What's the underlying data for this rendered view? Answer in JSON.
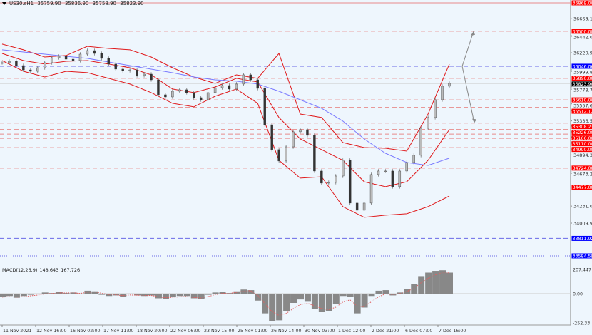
{
  "header": {
    "symbol": "US30.sH1",
    "open": "35759.90",
    "high": "35836.90",
    "low": "35758.90",
    "close": "35823.90"
  },
  "macd_header": {
    "label": "MACD(12,26,9)",
    "main": "148.643",
    "signal": "167.726"
  },
  "colors": {
    "background": "#eef6fd",
    "resistance": "#ff0000",
    "blue_level": "#0000ff",
    "current": "#000000",
    "bands": "#e0191b",
    "ma": "#7b7bff",
    "candles": "#333333",
    "histogram": "#888888",
    "signal": "#e06060"
  },
  "chart_data": [
    {
      "type": "line",
      "title": "US30.sH1",
      "ylim": [
        33584.59,
        36869.0
      ],
      "y_tick_labels": [
        "36663.15",
        "36442.05",
        "36220.95",
        "35999.85",
        "35778.75",
        "35557.65",
        "35336.55",
        "34894.35",
        "34673.25",
        "34231.05",
        "34009.95"
      ],
      "x_tick_labels": [
        "11 Nov 2021",
        "12 Nov 16:00",
        "16 Nov 02:00",
        "17 Nov 11:00",
        "18 Nov 20:00",
        "22 Nov 06:00",
        "23 Nov 15:00",
        "25 Nov 01:00",
        "26 Nov 14:00",
        "30 Nov 03:00",
        "1 Dec 12:00",
        "2 Dec 21:00",
        "6 Dec 07:00",
        "7 Dec 16:00"
      ],
      "levels": [
        {
          "value": 36869.0,
          "label": "36869.00",
          "kind": "red",
          "style": "solid"
        },
        {
          "value": 36500.0,
          "label": "36500.00",
          "kind": "red",
          "style": "dashed"
        },
        {
          "value": 36046.06,
          "label": "36046.06",
          "kind": "blue",
          "style": "dashed"
        },
        {
          "value": 35890.0,
          "label": "35890.00",
          "kind": "red",
          "style": "dashed"
        },
        {
          "value": 35823.9,
          "label": "35823.90",
          "kind": "current",
          "style": "solid"
        },
        {
          "value": 35610.0,
          "label": "35610.00",
          "kind": "red",
          "style": "dashed"
        },
        {
          "value": 35512.12,
          "label": "35512.12",
          "kind": "red",
          "style": "dashed"
        },
        {
          "value": 35308.23,
          "label": "35308.23",
          "kind": "red",
          "style": "dashed"
        },
        {
          "value": 35226.0,
          "label": "35226.00",
          "kind": "red",
          "style": "dashed"
        },
        {
          "value": 35166.0,
          "label": "35166.00",
          "kind": "red",
          "style": "dashed"
        },
        {
          "value": 35110.0,
          "label": "35110.00",
          "kind": "red",
          "style": "dashed"
        },
        {
          "value": 34990.0,
          "label": "34990.00",
          "kind": "red",
          "style": "dashed"
        },
        {
          "value": 34724.0,
          "label": "34724.00",
          "kind": "red",
          "style": "dashed"
        },
        {
          "value": 34477.0,
          "label": "34477.00",
          "kind": "red",
          "style": "dashed"
        },
        {
          "value": 33811.92,
          "label": "33811.92",
          "kind": "blue",
          "style": "dashed"
        },
        {
          "value": 33584.59,
          "label": "33584.59",
          "kind": "blue",
          "style": "dotted"
        }
      ],
      "series": [
        {
          "kind": "price",
          "values": [
            36092,
            36110,
            36055,
            35999,
            35981,
            36027,
            36092,
            36157,
            36175,
            36138,
            36120,
            36203,
            36249,
            36212,
            36148,
            36074,
            36009,
            35990,
            35999,
            35926,
            35944,
            35870,
            35676,
            35648,
            35722,
            35741,
            35704,
            35639,
            35611,
            35704,
            35768,
            35796,
            35750,
            35815,
            35935,
            35870,
            35759,
            35287,
            34964,
            34816,
            35000,
            35195,
            35223,
            35149,
            34686,
            34529,
            34538,
            34621,
            34825,
            34270,
            34177,
            34270,
            34640,
            34686,
            34686,
            34483,
            34686,
            34797,
            34890,
            35241,
            35380,
            35611,
            35787,
            35824
          ]
        },
        {
          "kind": "upper-band",
          "values": [
            36333,
            36259,
            36166,
            36185,
            36305,
            36277,
            36259,
            36166,
            36027,
            35907,
            35824,
            35935,
            35889,
            36212,
            35426,
            35380,
            35056,
            34991,
            34982,
            34945,
            35426,
            36074
          ]
        },
        {
          "kind": "middle-band",
          "values": [
            36212,
            36120,
            36074,
            36110,
            36120,
            36074,
            36027,
            35935,
            35750,
            35704,
            35777,
            35889,
            35842,
            35380,
            35102,
            34964,
            34825,
            34547,
            34483,
            34547,
            34825,
            35223
          ]
        },
        {
          "kind": "lower-band",
          "values": [
            36120,
            35981,
            35907,
            35981,
            35963,
            35889,
            35815,
            35704,
            35565,
            35519,
            35657,
            35750,
            35565,
            34825,
            34594,
            34612,
            34224,
            34085,
            34113,
            34131,
            34224,
            34362
          ]
        },
        {
          "kind": "moving-average",
          "values": [
            36259,
            36231,
            36203,
            36175,
            36148,
            36101,
            36055,
            36009,
            35962,
            35907,
            35870,
            35852,
            35815,
            35722,
            35611,
            35500,
            35334,
            35102,
            34917,
            34797,
            34760,
            34853
          ]
        }
      ]
    },
    {
      "type": "bar",
      "title": "MACD(12,26,9)",
      "ylim": [
        -252.33,
        207.447
      ],
      "y_tick_labels": [
        "207.447",
        "0.00",
        "-252.33"
      ],
      "values": [
        -30,
        -20,
        -35,
        -20,
        -10,
        -5,
        10,
        5,
        15,
        5,
        10,
        -5,
        25,
        20,
        -10,
        -20,
        -15,
        -25,
        -5,
        -15,
        -20,
        -15,
        -40,
        -45,
        -30,
        -20,
        -20,
        -40,
        -45,
        -10,
        10,
        15,
        5,
        20,
        35,
        30,
        -60,
        -170,
        -240,
        -230,
        -150,
        -80,
        -50,
        -70,
        -130,
        -160,
        -150,
        -90,
        -20,
        -30,
        -170,
        -120,
        -20,
        25,
        30,
        -15,
        10,
        40,
        80,
        150,
        180,
        195,
        200,
        180
      ]
    }
  ]
}
